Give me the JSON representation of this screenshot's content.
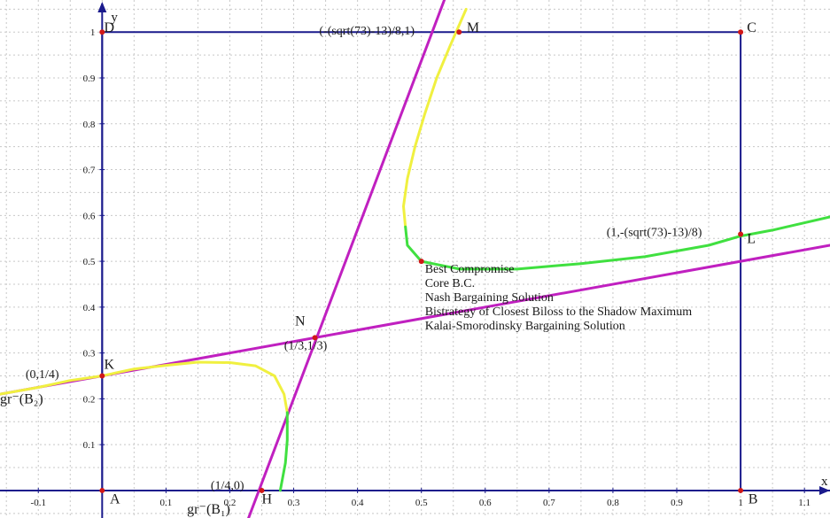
{
  "chart_data": {
    "type": "line",
    "grid": true,
    "xlim": [
      -0.16,
      1.14
    ],
    "ylim": [
      -0.06,
      1.07
    ],
    "x_axis_letter": "x",
    "y_axis_letter": "y",
    "x_ticks": [
      {
        "v": -0.1,
        "label": "-0.1"
      },
      {
        "v": 0.1,
        "label": "0.1"
      },
      {
        "v": 0.2,
        "label": "0.2"
      },
      {
        "v": 0.3,
        "label": "0.3"
      },
      {
        "v": 0.4,
        "label": "0.4"
      },
      {
        "v": 0.5,
        "label": "0.5"
      },
      {
        "v": 0.6,
        "label": "0.6"
      },
      {
        "v": 0.7,
        "label": "0.7"
      },
      {
        "v": 0.8,
        "label": "0.8"
      },
      {
        "v": 0.9,
        "label": "0.9"
      },
      {
        "v": 1.0,
        "label": "1"
      },
      {
        "v": 1.1,
        "label": "1.1"
      }
    ],
    "y_ticks": [
      {
        "v": 0.1,
        "label": "0.1"
      },
      {
        "v": 0.2,
        "label": "0.2"
      },
      {
        "v": 0.3,
        "label": "0.3"
      },
      {
        "v": 0.4,
        "label": "0.4"
      },
      {
        "v": 0.5,
        "label": "0.5"
      },
      {
        "v": 0.6,
        "label": "0.6"
      },
      {
        "v": 0.7,
        "label": "0.7"
      },
      {
        "v": 0.8,
        "label": "0.8"
      },
      {
        "v": 0.9,
        "label": "0.9"
      },
      {
        "v": 1.0,
        "label": "1"
      }
    ],
    "square": {
      "corners": [
        [
          0,
          0
        ],
        [
          1,
          0
        ],
        [
          1,
          1
        ],
        [
          0,
          1
        ]
      ],
      "color": "#1a1a8c"
    },
    "series": [
      {
        "id": "magenta-line-steep",
        "color": "#c020c0",
        "x": [
          0.2293,
          0.5359
        ],
        "y": [
          -0.06,
          1.07
        ]
      },
      {
        "id": "magenta-line-shallow",
        "color": "#c020c0",
        "x": [
          -0.16,
          1.14
        ],
        "y": [
          0.21,
          0.535
        ]
      },
      {
        "id": "yellow-curve-upper",
        "color": "#f0f040",
        "x": [
          0.475,
          0.472,
          0.478,
          0.49,
          0.505,
          0.524,
          0.545,
          0.57
        ],
        "y": [
          0.575,
          0.62,
          0.68,
          0.75,
          0.82,
          0.9,
          0.97,
          1.05
        ]
      },
      {
        "id": "green-curve-upper",
        "color": "#40e040",
        "x": [
          0.475,
          0.478,
          0.5,
          0.56,
          0.65,
          0.75,
          0.85,
          0.95,
          1.0,
          1.05,
          1.14
        ],
        "y": [
          0.575,
          0.535,
          0.5,
          0.483,
          0.483,
          0.495,
          0.51,
          0.535,
          0.555,
          0.568,
          0.597
        ]
      },
      {
        "id": "yellow-curve-lower",
        "color": "#f0f040",
        "x": [
          -0.16,
          -0.1,
          -0.05,
          0.0,
          0.05,
          0.1,
          0.15,
          0.2,
          0.24,
          0.27,
          0.285,
          0.29
        ],
        "y": [
          0.21,
          0.225,
          0.24,
          0.25,
          0.265,
          0.273,
          0.28,
          0.279,
          0.272,
          0.25,
          0.21,
          0.17
        ]
      },
      {
        "id": "green-curve-lower",
        "color": "#40e040",
        "x": [
          0.29,
          0.29,
          0.287,
          0.279
        ],
        "y": [
          0.17,
          0.11,
          0.06,
          0.0
        ]
      }
    ],
    "points": [
      {
        "name": "A",
        "x": 0,
        "y": 0
      },
      {
        "name": "B",
        "x": 1,
        "y": 0
      },
      {
        "name": "C",
        "x": 1,
        "y": 1
      },
      {
        "name": "D",
        "x": 0,
        "y": 1
      },
      {
        "name": "H",
        "x": 0.25,
        "y": 0
      },
      {
        "name": "K",
        "x": 0,
        "y": 0.25
      },
      {
        "name": "N",
        "x": 0.3333,
        "y": 0.3333
      },
      {
        "name": "M",
        "x": 0.559,
        "y": 1
      },
      {
        "name": "L",
        "x": 1,
        "y": 0.559
      },
      {
        "name": "BC",
        "x": 0.5,
        "y": 0.5
      }
    ],
    "labels": [
      {
        "key": "A",
        "text": "A",
        "x": 0.012,
        "y": -0.028,
        "size": 16
      },
      {
        "key": "B",
        "text": "B",
        "x": 1.012,
        "y": -0.028,
        "size": 16
      },
      {
        "key": "C",
        "text": "C",
        "x": 1.01,
        "y": 1.0,
        "size": 16
      },
      {
        "key": "D",
        "text": "D",
        "x": 0.003,
        "y": 1.0,
        "size": 16
      },
      {
        "key": "H",
        "text": "H",
        "x": 0.25,
        "y": -0.028,
        "size": 16
      },
      {
        "key": "K",
        "text": "K",
        "x": 0.003,
        "y": 0.265,
        "size": 16
      },
      {
        "key": "N",
        "text": "N",
        "x": 0.302,
        "y": 0.36,
        "size": 16
      },
      {
        "key": "M",
        "text": "M",
        "x": 0.571,
        "y": 1.0,
        "size": 16
      },
      {
        "key": "L",
        "text": "L",
        "x": 1.01,
        "y": 0.54,
        "size": 16
      },
      {
        "key": "M-coord",
        "text": "(-(sqrt(73)-13)/8,1)",
        "x": 0.34,
        "y": 0.995,
        "size": 14
      },
      {
        "key": "L-coord",
        "text": "(1,-(sqrt(73)-13)/8)",
        "x": 0.79,
        "y": 0.555,
        "size": 14
      },
      {
        "key": "N-coord",
        "text": "(1/3,1/3)",
        "x": 0.285,
        "y": 0.308,
        "size": 14
      },
      {
        "key": "K-coord",
        "text": "(0,1/4)",
        "x": -0.12,
        "y": 0.245,
        "size": 14
      },
      {
        "key": "H-coord",
        "text": "(1/4,0)",
        "x": 0.17,
        "y": 0.003,
        "size": 14
      },
      {
        "key": "gr-B2",
        "text": "gr⁻(B₂)",
        "x": -0.16,
        "y": 0.19,
        "size": 16
      },
      {
        "key": "gr-B1",
        "text": "gr⁻(B₁)",
        "x": 0.133,
        "y": -0.05,
        "size": 16
      }
    ],
    "solution_legend": [
      "Best Compromise",
      "Core B.C.",
      "Nash Bargaining Solution",
      "Bistrategy of Closest Biloss to the Shadow Maximum",
      "Kalai-Smorodinsky Bargaining Solution"
    ],
    "colors": {
      "axis": "#1a1a8c",
      "grid": "#c8c8c8",
      "point": "#d01818",
      "text": "#1a1a1a"
    }
  }
}
